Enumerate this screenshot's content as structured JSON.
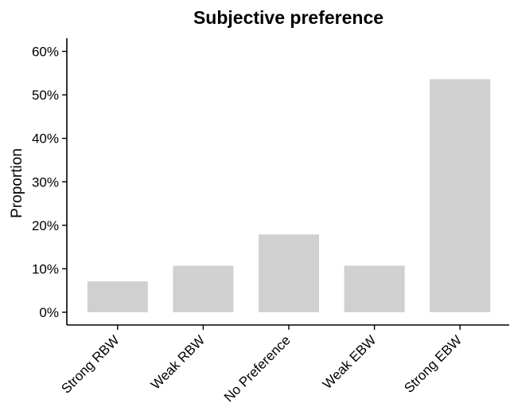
{
  "chart_data": {
    "type": "bar",
    "title": "Subjective preference",
    "xlabel": "",
    "ylabel": "Proportion",
    "categories": [
      "Strong RBW",
      "Weak RBW",
      "No Preference",
      "Weak EBW",
      "Strong EBW"
    ],
    "values": [
      0.071,
      0.107,
      0.179,
      0.107,
      0.536
    ],
    "ylim": [
      0,
      0.6
    ],
    "yticks": [
      0,
      0.1,
      0.2,
      0.3,
      0.4,
      0.5,
      0.6
    ],
    "ytick_labels": [
      "0%",
      "10%",
      "20%",
      "30%",
      "40%",
      "50%",
      "60%"
    ],
    "bar_color": "#d0d0d0",
    "grid": false,
    "legend": "none"
  }
}
